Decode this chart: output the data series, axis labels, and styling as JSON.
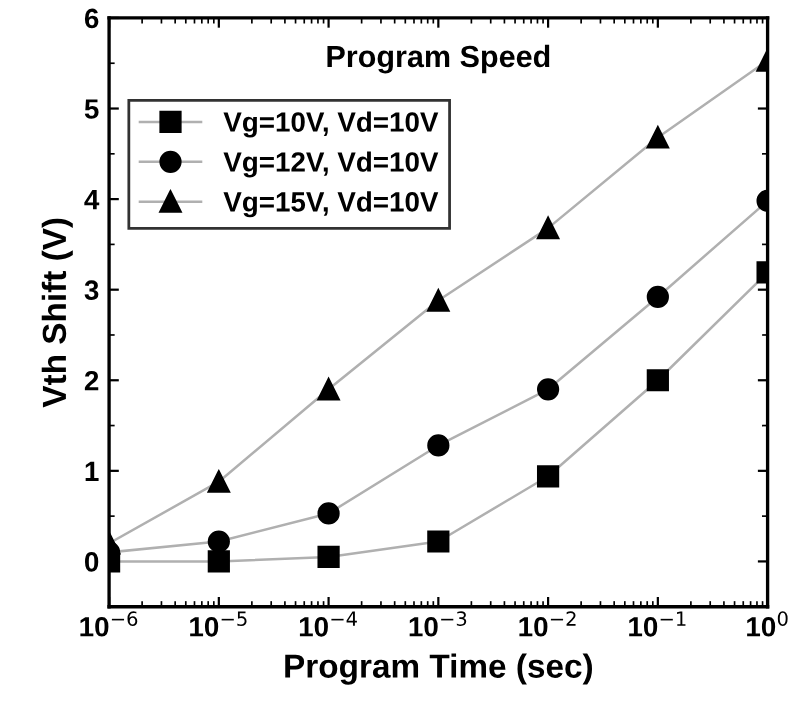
{
  "chart_data": {
    "type": "line",
    "title": "Program Speed",
    "xlabel": "Program Time (sec)",
    "ylabel": "Vth Shift (V)",
    "log": "x",
    "x": [
      1e-06,
      1e-05,
      0.0001,
      0.001,
      0.01,
      0.1,
      1
    ],
    "series": [
      {
        "name": "Vg=10V, Vd=10V",
        "color": "#000000",
        "marker": "square",
        "values": [
          0,
          0,
          0.05,
          0.22,
          0.94,
          2.0,
          3.19
        ]
      },
      {
        "name": "Vg=12V, Vd=10V",
        "color": "#000000",
        "marker": "circle",
        "values": [
          0.1,
          0.22,
          0.53,
          1.28,
          1.9,
          2.92,
          3.98
        ]
      },
      {
        "name": "Vg=15V, Vd=10V",
        "color": "#000000",
        "marker": "triangle",
        "values": [
          0.2,
          0.88,
          1.9,
          2.88,
          3.68,
          4.68,
          5.53
        ]
      }
    ],
    "xlim": [
      1e-06,
      1
    ],
    "ylim": [
      -0.5,
      6
    ],
    "xticks": [
      {
        "value": 1e-06,
        "label": "10$^{−6}$"
      },
      {
        "value": 1e-05,
        "label": "10$^{−5}$"
      },
      {
        "value": 0.0001,
        "label": "10$^{−4}$"
      },
      {
        "value": 0.001,
        "label": "10$^{−3}$"
      },
      {
        "value": 0.01,
        "label": "10$^{−2}$"
      },
      {
        "value": 0.1,
        "label": "10$^{−1}$"
      },
      {
        "value": 1,
        "label": "10$^{0}$"
      }
    ],
    "yticks": [
      0,
      1,
      2,
      3,
      4,
      5,
      6
    ],
    "grid": false,
    "legend": "top left",
    "line_style": "solid"
  }
}
